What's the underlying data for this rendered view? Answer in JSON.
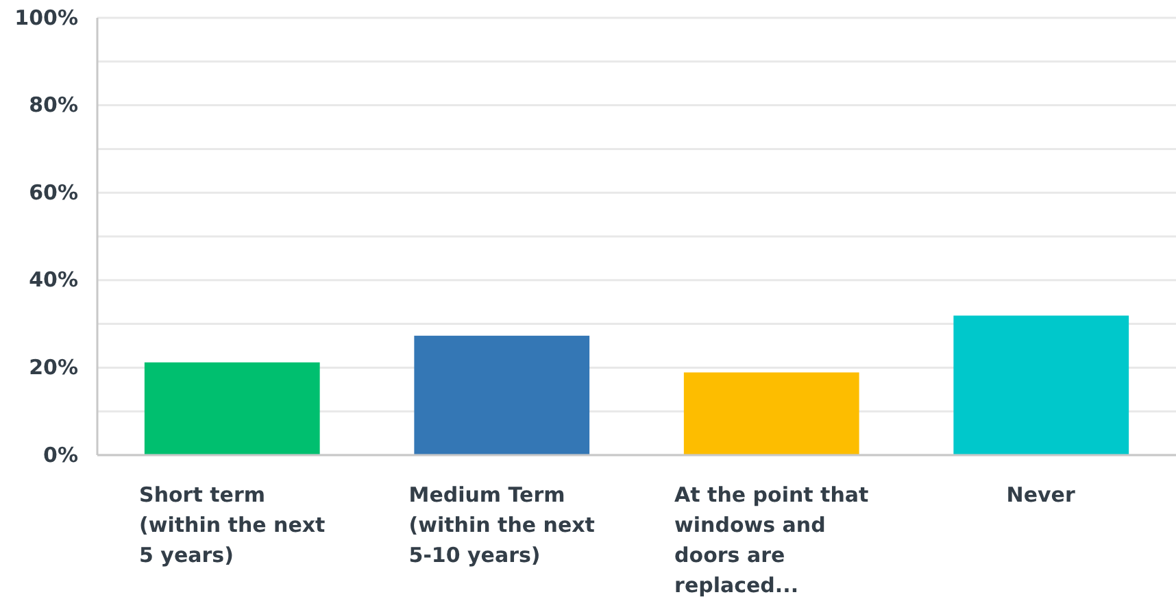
{
  "chart_data": {
    "type": "bar",
    "categories": [
      "Short term (within the next 5 years)",
      "Medium Term (within the next 5-10 years)",
      "At the point that windows and doors are replaced...",
      "Never"
    ],
    "values": [
      21.2,
      27.3,
      18.9,
      31.9
    ],
    "colors": [
      "#00bf6f",
      "#3477b5",
      "#fdbd00",
      "#00c8cb"
    ],
    "ylim": [
      0,
      100
    ],
    "yticks": [
      {
        "value": 0,
        "label": "0%"
      },
      {
        "value": 10,
        "label": null
      },
      {
        "value": 20,
        "label": "20%"
      },
      {
        "value": 30,
        "label": null
      },
      {
        "value": 40,
        "label": "40%"
      },
      {
        "value": 50,
        "label": null
      },
      {
        "value": 60,
        "label": "60%"
      },
      {
        "value": 70,
        "label": null
      },
      {
        "value": 80,
        "label": "80%"
      },
      {
        "value": 90,
        "label": null
      },
      {
        "value": 100,
        "label": "100%"
      }
    ],
    "grid": "y"
  }
}
